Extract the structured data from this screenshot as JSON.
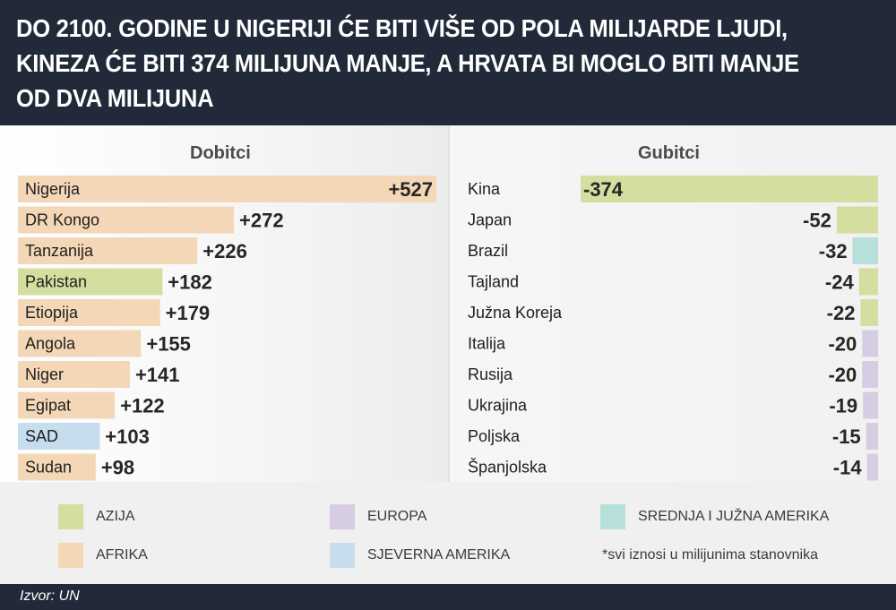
{
  "title": "DO 2100. GODINE U NIGERIJI ĆE BITI VIŠE OD POLA MILIJARDE LJUDI, KINEZA ĆE BITI 374 MILIJUNA MANJE, A HRVATA BI MOGLO BITI MANJE OD DVA MILIJUNA",
  "colors": {
    "header_bg": "#222a3a",
    "azija": "#d4de9e",
    "afrika": "#f3d7b6",
    "europa": "#d6cde2",
    "srednja_juzna_amerika": "#b6e0d9",
    "sjeverna_amerika": "#c7dcec"
  },
  "legend": {
    "azija": "AZIJA",
    "afrika": "AFRIKA",
    "europa": "EUROPA",
    "sjeverna_amerika": "SJEVERNA AMERIKA",
    "srednja_juzna_amerika": "SREDNJA I JUŽNA AMERIKA",
    "note": "*svi iznosi u milijunima stanovnika"
  },
  "source": "Izvor: UN",
  "chart_data": [
    {
      "type": "bar",
      "title": "Dobitci",
      "categories": [
        "Nigerija",
        "DR Kongo",
        "Tanzanija",
        "Pakistan",
        "Etiopija",
        "Angola",
        "Niger",
        "Egipat",
        "SAD",
        "Sudan"
      ],
      "values": [
        527,
        272,
        226,
        182,
        179,
        155,
        141,
        122,
        103,
        98
      ],
      "labels": [
        "+527",
        "+272",
        "+226",
        "+182",
        "+179",
        "+155",
        "+141",
        "+122",
        "+103",
        "+98"
      ],
      "regions": [
        "afrika",
        "afrika",
        "afrika",
        "azija",
        "afrika",
        "afrika",
        "afrika",
        "afrika",
        "sjeverna_amerika",
        "afrika"
      ]
    },
    {
      "type": "bar",
      "title": "Gubitci",
      "categories": [
        "Kina",
        "Japan",
        "Brazil",
        "Tajland",
        "Južna Koreja",
        "Italija",
        "Rusija",
        "Ukrajina",
        "Poljska",
        "Španjolska"
      ],
      "values": [
        -374,
        -52,
        -32,
        -24,
        -22,
        -20,
        -20,
        -19,
        -15,
        -14
      ],
      "labels": [
        "-374",
        "-52",
        "-32",
        "-24",
        "-22",
        "-20",
        "-20",
        "-19",
        "-15",
        "-14"
      ],
      "regions": [
        "azija",
        "azija",
        "srednja_juzna_amerika",
        "azija",
        "azija",
        "europa",
        "europa",
        "europa",
        "europa",
        "europa"
      ]
    }
  ]
}
